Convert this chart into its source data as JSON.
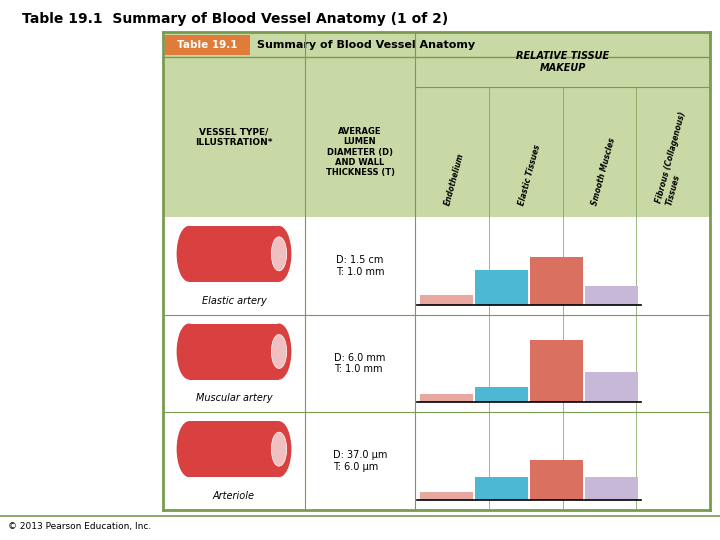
{
  "title": "Table 19.1  Summary of Blood Vessel Anatomy (1 of 2)",
  "table_title": "Table 19.1",
  "table_subtitle": "Summary of Blood Vessel Anatomy",
  "copyright": "© 2013 Pearson Education, Inc.",
  "header_bg": "#c8d9a5",
  "table_title_bg": "#e07b39",
  "table_title_color": "#ffffff",
  "rotated_headers": [
    "Endothelium",
    "Elastic Tissues",
    "Smooth Muscles",
    "Fibrous (Collagenous)\nTissues"
  ],
  "rows": [
    {
      "name": "Elastic artery",
      "diameter_text": "D: 1.5 cm\nT: 1.0 mm",
      "bars": [
        0.12,
        0.42,
        0.58,
        0.22
      ]
    },
    {
      "name": "Muscular artery",
      "diameter_text": "D: 6.0 mm\nT: 1.0 mm",
      "bars": [
        0.1,
        0.18,
        0.75,
        0.36
      ]
    },
    {
      "name": "Arteriole",
      "diameter_text": "D: 37.0 μm\nT: 6.0 μm",
      "bars": [
        0.1,
        0.28,
        0.48,
        0.28
      ]
    }
  ],
  "bar_colors": [
    "#e8a8a0",
    "#4db8d4",
    "#d97060",
    "#c8b8d8"
  ],
  "outer_border": "#7a9a50",
  "inner_line": "#8aaa55",
  "white_bg": "#ffffff",
  "title_font_size": 10,
  "cell_font_size": 6.5
}
